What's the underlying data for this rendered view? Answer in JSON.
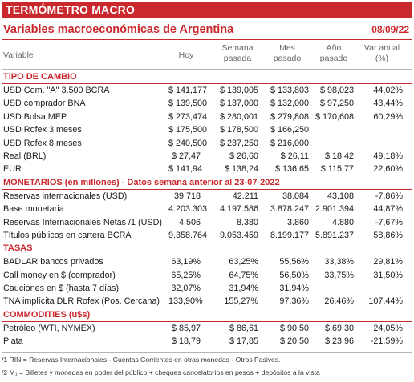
{
  "banner": "TERMÓMETRO MACRO",
  "subtitle": "Variables macroeconómicas de Argentina",
  "date": "08/09/22",
  "headers": {
    "variable": "Variable",
    "hoy": "Hoy",
    "semana": [
      "Semana",
      "pasada"
    ],
    "mes": [
      "Mes",
      "pasado"
    ],
    "anio": [
      "Año",
      "pasado"
    ],
    "var": [
      "Var anual",
      "(%)"
    ]
  },
  "sections": [
    {
      "title": "TIPO DE CAMBIO",
      "rows": [
        [
          "USD Com. \"A\" 3.500 BCRA",
          "$ 141,177",
          "$ 139,005",
          "$ 133,803",
          "$ 98,023",
          "44,02%"
        ],
        [
          "USD comprador BNA",
          "$ 139,500",
          "$ 137,000",
          "$ 132,000",
          "$ 97,250",
          "43,44%"
        ],
        [
          "USD Bolsa MEP",
          "$ 273,474",
          "$ 280,001",
          "$ 279,808",
          "$ 170,608",
          "60,29%"
        ],
        [
          "USD Rofex 3 meses",
          "$ 175,500",
          "$ 178,500",
          "$ 166,250",
          "",
          ""
        ],
        [
          "USD Rofex 8 meses",
          "$ 240,500",
          "$ 237,250",
          "$ 216,000",
          "",
          ""
        ],
        [
          "Real (BRL)",
          "$ 27,47",
          "$ 26,60",
          "$ 26,11",
          "$ 18,42",
          "49,18%"
        ],
        [
          "EUR",
          "$ 141,94",
          "$ 138,24",
          "$ 136,65",
          "$ 115,77",
          "22,60%"
        ]
      ]
    },
    {
      "title": "MONETARIOS (en millones) - Datos semana anterior al 23-07-2022",
      "rows": [
        [
          "Reservas internacionales (USD)",
          "39.718",
          "42.211",
          "38.084",
          "43.108",
          "-7,86%"
        ],
        [
          "Base monetaria",
          "4.203.303",
          "4.197.586",
          "3.878.247",
          "2.901.394",
          "44,87%"
        ],
        [
          "Reservas Internacionales Netas /1 (USD)",
          "4.506",
          "8.380",
          "3.860",
          "4.880",
          "-7,67%"
        ],
        [
          "Títulos públicos en cartera BCRA",
          "9.358.764",
          "9.053.459",
          "8.199.177",
          "5.891.237",
          "58,86%"
        ]
      ]
    },
    {
      "title": "TASAS",
      "rows": [
        [
          "BADLAR bancos privados",
          "63,19%",
          "63,25%",
          "55,56%",
          "33,38%",
          "29,81%"
        ],
        [
          "Call money en $ (comprador)",
          "65,25%",
          "64,75%",
          "56,50%",
          "33,75%",
          "31,50%"
        ],
        [
          "Cauciones en $ (hasta 7 días)",
          "32,07%",
          "31,94%",
          "31,94%",
          "",
          ""
        ],
        [
          "TNA implícita DLR Rofex (Pos. Cercana)",
          "133,90%",
          "155,27%",
          "97,36%",
          "26,46%",
          "107,44%"
        ]
      ]
    },
    {
      "title": "COMMODITIES (u$s)",
      "rows": [
        [
          "Petróleo (WTI, NYMEX)",
          "$ 85,97",
          "$ 86,61",
          "$ 90,50",
          "$ 69,30",
          "24,05%"
        ],
        [
          "Plata",
          "$ 18,79",
          "$ 17,85",
          "$ 20,50",
          "$ 23,96",
          "-21,59%"
        ]
      ]
    }
  ],
  "footnotes": [
    "/1 RIN = Reservas Internacionales - Cuentas Corrientes en otras monedas - Otros Pasivos.",
    "/2 M₁ = Billetes y monedas en poder del público + cheques cancelatorios en pesos + depósitos a la vista"
  ]
}
